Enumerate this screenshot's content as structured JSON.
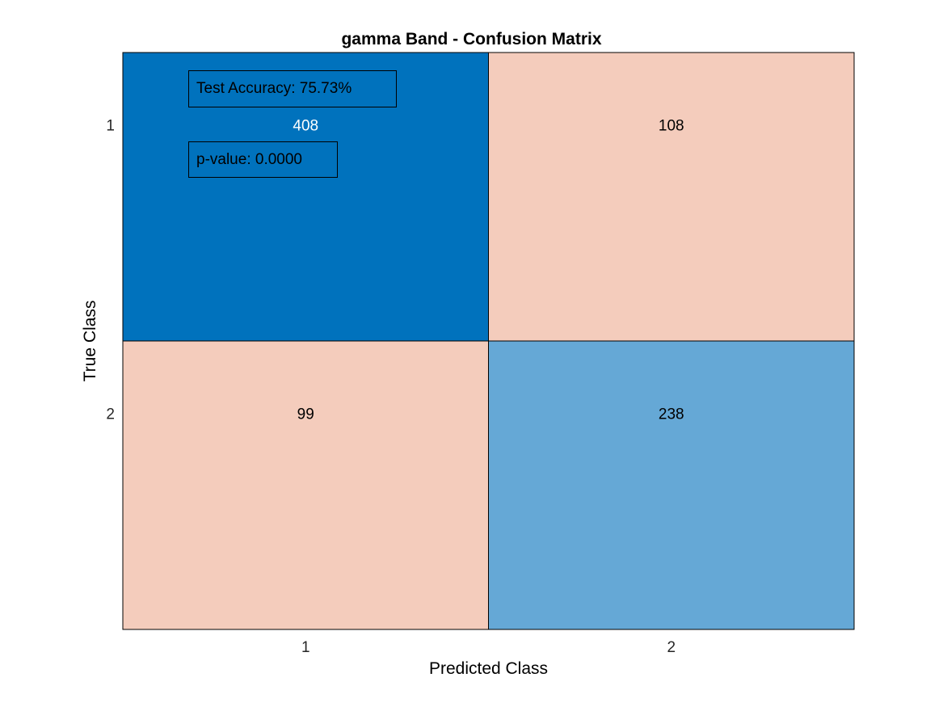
{
  "chart_data": {
    "type": "heatmap",
    "title": "gamma Band - Confusion Matrix",
    "xlabel": "Predicted Class",
    "ylabel": "True Class",
    "x_categories": [
      "1",
      "2"
    ],
    "y_categories": [
      "1",
      "2"
    ],
    "values": [
      [
        408,
        108
      ],
      [
        99,
        238
      ]
    ],
    "colors": {
      "diagonal_strong": "#0072BD",
      "diagonal_light": "#65A8D6",
      "off_diagonal": "#F4CCBC",
      "grid_line": "#000000",
      "text_dark": "#000000",
      "text_light": "#ffffff"
    },
    "annotations": [
      "Test Accuracy: 75.73%",
      "p-value: 0.0000"
    ]
  }
}
